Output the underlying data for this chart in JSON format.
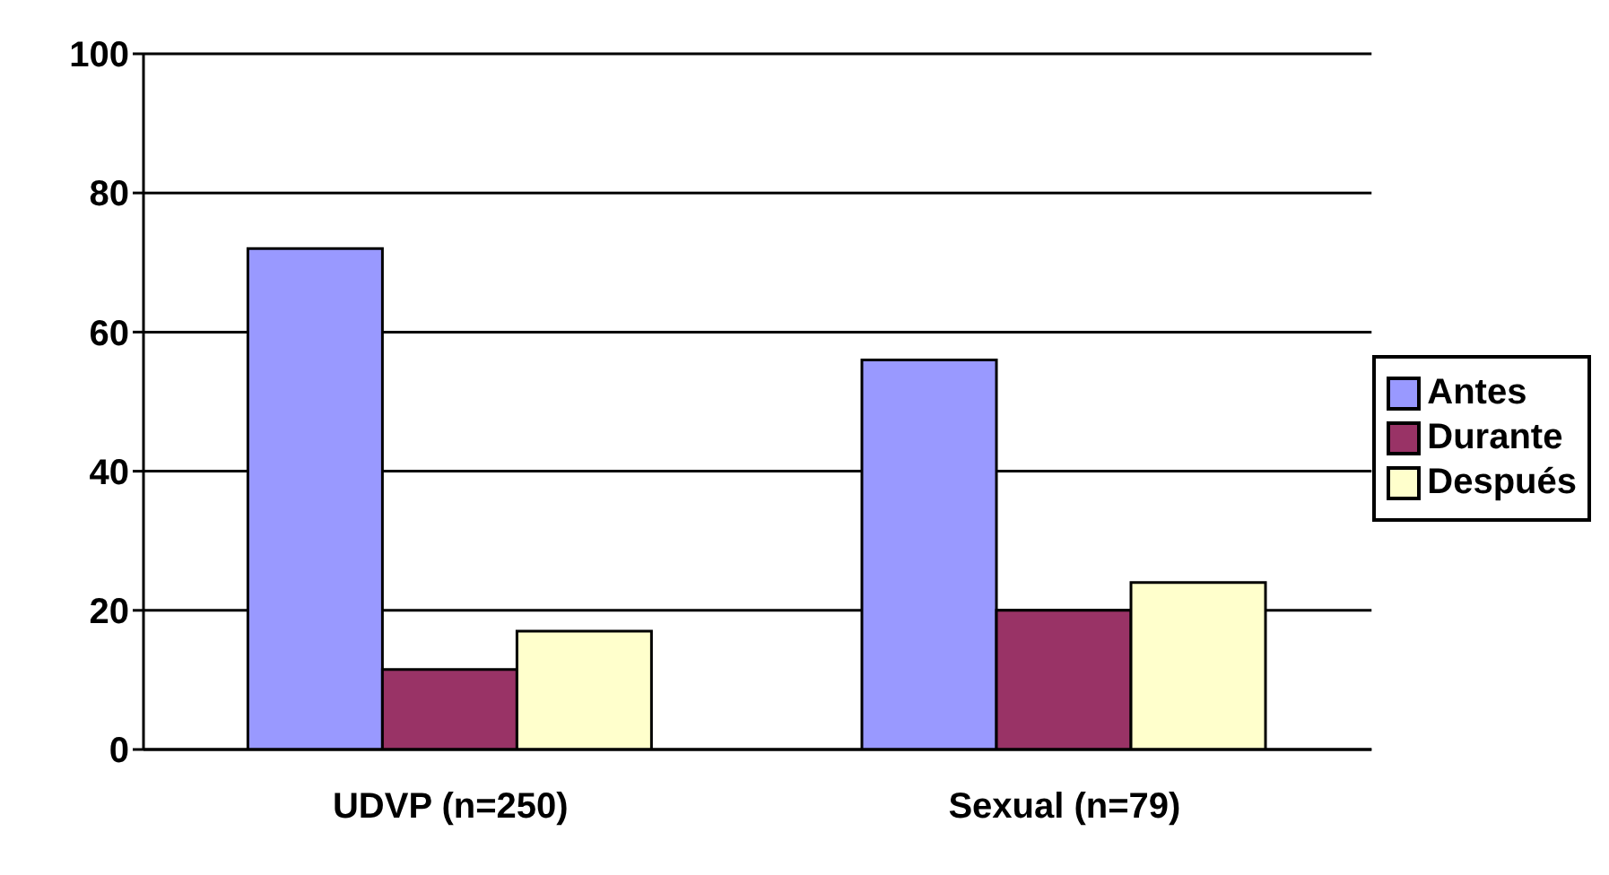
{
  "chart_data": {
    "type": "bar",
    "categories": [
      "UDVP (n=250)",
      "Sexual (n=79)"
    ],
    "series": [
      {
        "name": "Antes",
        "color": "#9999ff",
        "values": [
          72,
          56
        ]
      },
      {
        "name": "Durante",
        "color": "#993366",
        "values": [
          11.5,
          20
        ]
      },
      {
        "name": "Después",
        "color": "#ffffcc",
        "values": [
          17,
          24
        ]
      }
    ],
    "ylim": [
      0,
      100
    ],
    "yticks": [
      0,
      20,
      40,
      60,
      80,
      100
    ],
    "grid": "y",
    "legend": "right"
  }
}
